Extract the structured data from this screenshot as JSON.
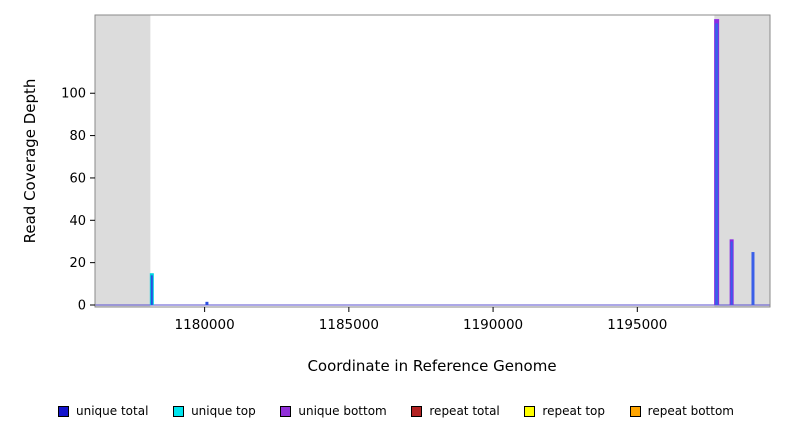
{
  "chart_data": {
    "type": "bar",
    "xlabel": "Coordinate in Reference Genome",
    "ylabel": "Read Coverage Depth",
    "xlim": [
      1176200,
      1199600
    ],
    "ylim": [
      0,
      136
    ],
    "xticks": [
      1180000,
      1185000,
      1190000,
      1195000
    ],
    "yticks": [
      0,
      20,
      40,
      60,
      80,
      100
    ],
    "grid": false,
    "panel_border_color": "#8a8a8a",
    "background_color": "#ffffff",
    "shaded_regions": [
      {
        "from": 1176200,
        "to": 1178120,
        "color": "#dcdcdc"
      },
      {
        "from": 1197670,
        "to": 1199600,
        "color": "#dcdcdc"
      }
    ],
    "baseline": {
      "value": 0,
      "color": "#5a4fcf"
    },
    "spikes": [
      {
        "x": 1178170,
        "layers": [
          {
            "color": "#00d5e0",
            "height": 15,
            "width": 4
          },
          {
            "color": "#2b4fe0",
            "height": 14,
            "width": 2
          }
        ]
      },
      {
        "x": 1180080,
        "layers": [
          {
            "color": "#2b4fe0",
            "height": 1.5,
            "width": 3
          }
        ]
      },
      {
        "x": 1197750,
        "layers": [
          {
            "color": "#8a2be2",
            "height": 135,
            "width": 5
          },
          {
            "color": "#3a5fe8",
            "height": 133,
            "width": 3
          }
        ]
      },
      {
        "x": 1198270,
        "layers": [
          {
            "color": "#8a2be2",
            "height": 31,
            "width": 4
          },
          {
            "color": "#3a5fe8",
            "height": 30,
            "width": 2
          }
        ]
      },
      {
        "x": 1199010,
        "layers": [
          {
            "color": "#3a5fe8",
            "height": 25,
            "width": 3
          }
        ]
      }
    ],
    "legend": {
      "position": "bottom",
      "entries": [
        {
          "label": "unique total",
          "color": "#1414cd"
        },
        {
          "label": "unique top",
          "color": "#00e5ee"
        },
        {
          "label": "unique bottom",
          "color": "#9130d9"
        },
        {
          "label": "repeat total",
          "color": "#b22222"
        },
        {
          "label": "repeat top",
          "color": "#ffff00"
        },
        {
          "label": "repeat bottom",
          "color": "#ffa500"
        }
      ]
    }
  }
}
